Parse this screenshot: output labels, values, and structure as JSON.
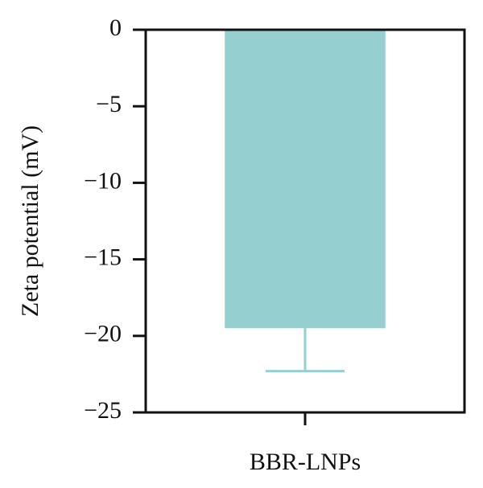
{
  "chart_data": {
    "type": "bar",
    "ylabel": "Zeta potential (mV)",
    "categories": [
      "BBR-LNPs"
    ],
    "values": [
      -19.5
    ],
    "errors": [
      2.8
    ],
    "color": "#96cfd0",
    "ylim": [
      -25,
      0
    ],
    "yticks": [
      0,
      {
        "value": -5,
        "label": "−5"
      },
      {
        "value": -10,
        "label": "−10"
      },
      {
        "value": -15,
        "label": "−15"
      },
      {
        "value": -20,
        "label": "−20"
      },
      {
        "value": -25,
        "label": "−25"
      }
    ]
  }
}
